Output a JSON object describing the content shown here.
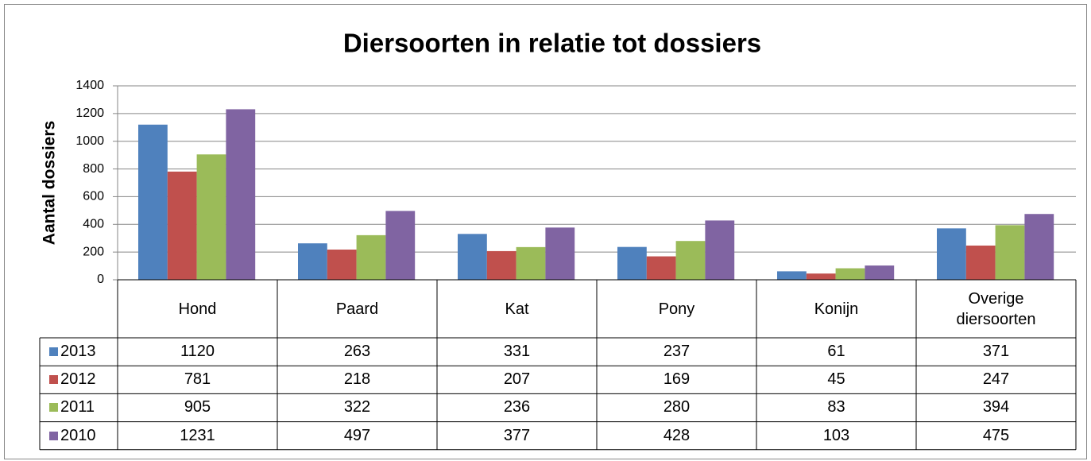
{
  "chart_data": {
    "type": "bar",
    "title": "Diersoorten in relatie tot dossiers",
    "y_label": "Aantal dossiers",
    "categories": [
      "Hond",
      "Paard",
      "Kat",
      "Pony",
      "Konijn",
      "Overige diersoorten"
    ],
    "series": [
      {
        "name": "2013",
        "color": "#4f81bd",
        "values": [
          1120,
          263,
          331,
          237,
          61,
          371
        ]
      },
      {
        "name": "2012",
        "color": "#c0504d",
        "values": [
          781,
          218,
          207,
          169,
          45,
          247
        ]
      },
      {
        "name": "2011",
        "color": "#9bbb59",
        "values": [
          905,
          322,
          236,
          280,
          83,
          394
        ]
      },
      {
        "name": "2010",
        "color": "#8064a2",
        "values": [
          1231,
          497,
          377,
          428,
          103,
          475
        ]
      }
    ],
    "ylim": [
      0,
      1400
    ],
    "yticks": [
      0,
      200,
      400,
      600,
      800,
      1000,
      1200,
      1400
    ],
    "grid": true
  }
}
